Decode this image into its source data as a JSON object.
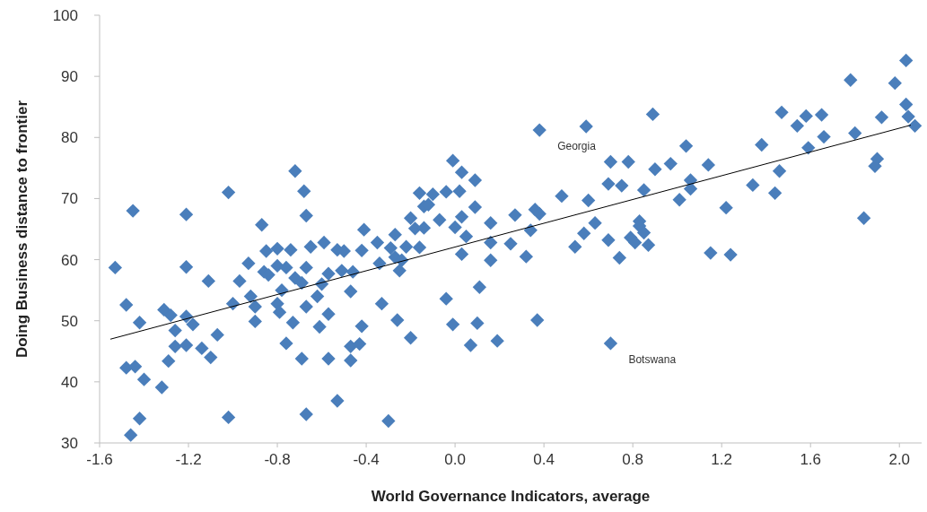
{
  "chart_data": {
    "type": "scatter",
    "xlabel": "World Governance Indicators, average",
    "ylabel": "Doing Business distance to frontier",
    "xlim": [
      -1.6,
      2.1
    ],
    "xticks": [
      {
        "value": -1.6,
        "label": "-1.6"
      },
      {
        "value": -1.2,
        "label": "-1.2"
      },
      {
        "value": -0.8,
        "label": "-0.8"
      },
      {
        "value": -0.4,
        "label": "-0.4"
      },
      {
        "value": 0,
        "label": "0.0"
      },
      {
        "value": 0.4,
        "label": "0.4"
      },
      {
        "value": 0.8,
        "label": "0.8"
      },
      {
        "value": 1.2,
        "label": "1.2"
      },
      {
        "value": 1.6,
        "label": "1.6"
      },
      {
        "value": 2,
        "label": "2.0"
      }
    ],
    "ylim": [
      30,
      100
    ],
    "yticks": [
      30,
      40,
      50,
      60,
      70,
      80,
      90,
      100
    ],
    "grid": false,
    "marker": "diamond",
    "series": [
      {
        "color": "#4a7ebb",
        "x": [
          -0.72,
          -0.68,
          -1.02,
          -1.45,
          -1.21,
          -0.67,
          -0.87,
          -0.41,
          -1.53,
          -1.21,
          -0.93,
          -0.85,
          -0.8,
          -0.74,
          -0.65,
          -0.59,
          -0.53,
          -0.5,
          -0.42,
          -0.35,
          -0.8,
          -0.76,
          -0.86,
          -0.84,
          -0.67,
          -0.72,
          -0.69,
          -0.57,
          -0.51,
          -0.46,
          -0.34,
          -1.11,
          -0.97,
          -0.78,
          -0.6,
          -0.47,
          -1.48,
          -1.0,
          -0.92,
          -0.9,
          -0.8,
          -0.79,
          -0.67,
          -0.62,
          -0.33,
          -1.31,
          -1.28,
          -1.21,
          -1.18,
          -1.42,
          -0.9,
          -0.73,
          -0.57,
          -1.26,
          -1.07,
          -0.61,
          -0.42,
          -1.26,
          -1.21,
          -1.14,
          -1.1,
          -0.76,
          -0.47,
          -0.43,
          -1.48,
          -1.44,
          -1.29,
          -0.69,
          -0.57,
          -0.47,
          -1.4,
          -1.32,
          -0.53,
          -0.67,
          -1.42,
          -1.02,
          -1.46,
          -0.3,
          -0.01,
          0.03,
          0.09,
          -0.16,
          -0.1,
          -0.04,
          0.02,
          -0.14,
          -0.12,
          -0.2,
          -0.07,
          0.03,
          0.09,
          -0.27,
          -0.18,
          -0.14,
          0.0,
          0.05,
          0.16,
          0.27,
          0.36,
          0.38,
          0.34,
          0.48,
          0.6,
          0.7,
          0.78,
          0.69,
          0.75,
          0.85,
          0.63,
          0.58,
          0.54,
          0.69,
          0.74,
          0.79,
          0.81,
          0.83,
          -0.29,
          -0.22,
          -0.16,
          -0.27,
          -0.24,
          -0.25,
          0.03,
          0.16,
          0.25,
          0.16,
          0.32,
          0.11,
          -0.04,
          -0.26,
          -0.01,
          0.1,
          0.37,
          -0.2,
          0.07,
          0.19,
          0.7,
          2.03,
          1.78,
          1.98,
          2.03,
          1.47,
          0.89,
          1.58,
          1.65,
          1.92,
          2.04,
          2.07,
          1.54,
          1.8,
          1.66,
          1.04,
          1.38,
          1.59,
          1.9,
          1.89,
          0.9,
          0.97,
          1.14,
          1.46,
          1.06,
          1.06,
          1.01,
          1.34,
          1.44,
          1.22,
          1.84,
          0.83,
          0.85,
          0.87,
          1.15,
          1.24,
          0.38,
          0.59
        ],
        "values": [
          74.5,
          71.2,
          71.0,
          68.0,
          67.4,
          67.2,
          65.7,
          64.9,
          58.7,
          58.8,
          59.4,
          61.4,
          61.8,
          61.6,
          62.1,
          62.8,
          61.6,
          61.4,
          61.5,
          62.8,
          59.0,
          58.7,
          58.0,
          57.5,
          58.7,
          57.0,
          56.2,
          57.7,
          58.2,
          58.0,
          59.4,
          56.5,
          56.5,
          55.0,
          56.0,
          54.8,
          52.6,
          52.8,
          54.0,
          52.3,
          52.8,
          51.4,
          52.3,
          54.0,
          52.8,
          51.8,
          50.9,
          50.7,
          49.4,
          49.7,
          49.9,
          49.7,
          51.1,
          48.4,
          47.7,
          49.0,
          49.1,
          45.8,
          46.0,
          45.5,
          44.0,
          46.3,
          45.8,
          46.2,
          42.3,
          42.5,
          43.4,
          43.8,
          43.8,
          43.5,
          40.4,
          39.1,
          36.9,
          34.7,
          34.0,
          34.2,
          31.3,
          33.6,
          76.2,
          74.3,
          73.0,
          70.9,
          70.7,
          71.1,
          71.2,
          68.7,
          69.0,
          66.8,
          66.5,
          67.0,
          68.6,
          64.1,
          65.1,
          65.2,
          65.3,
          63.8,
          66.0,
          67.3,
          68.2,
          67.5,
          64.8,
          70.4,
          69.7,
          76.0,
          76.0,
          72.4,
          72.1,
          71.4,
          66.0,
          64.3,
          62.1,
          63.2,
          60.3,
          63.6,
          62.8,
          66.3,
          61.9,
          62.1,
          62.0,
          60.4,
          59.9,
          58.2,
          60.9,
          62.8,
          62.6,
          59.9,
          60.5,
          55.5,
          53.6,
          50.1,
          49.4,
          49.6,
          50.1,
          47.2,
          46.0,
          46.7,
          46.3,
          92.6,
          89.4,
          88.9,
          85.4,
          84.1,
          83.8,
          83.5,
          83.7,
          83.3,
          83.4,
          81.9,
          81.9,
          80.7,
          80.1,
          78.6,
          78.8,
          78.3,
          76.5,
          75.3,
          74.8,
          75.7,
          75.5,
          74.5,
          73.0,
          71.6,
          69.8,
          72.2,
          70.9,
          68.5,
          66.8,
          65.5,
          64.4,
          62.4,
          61.1,
          60.8,
          81.2,
          81.8
        ]
      },
      {
        "type": "line",
        "color": "#000000",
        "x": [
          -1.55,
          2.05
        ],
        "values": [
          47.0,
          82.0
        ],
        "marker": "none",
        "line_style": "solid"
      }
    ],
    "annotations": [
      {
        "text": "Georgia",
        "x": 0.38,
        "y": 81.2
      },
      {
        "text": "Botswana",
        "x": 0.7,
        "y": 46.3
      }
    ]
  }
}
